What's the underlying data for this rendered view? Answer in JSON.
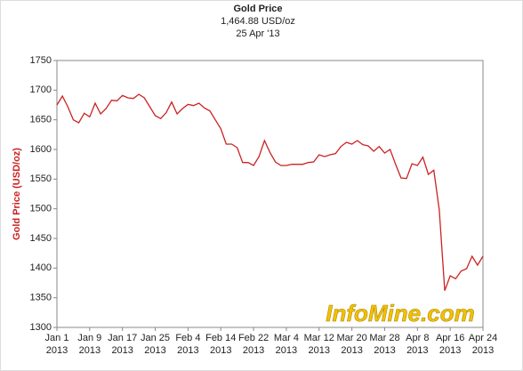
{
  "chart_data": {
    "type": "line",
    "title": "Gold Price",
    "subtitle": "1,464.88 USD/oz",
    "date": "25 Apr '13",
    "y_label": "Gold Price (USD/oz)",
    "watermark": "InfoMine.com",
    "x_year": "2013",
    "color": "#cc2222",
    "categories": [
      "Jan 1",
      null,
      null,
      null,
      null,
      null,
      "Jan 9",
      null,
      null,
      null,
      null,
      null,
      "Jan 17",
      null,
      null,
      null,
      null,
      null,
      "Jan 25",
      null,
      null,
      null,
      null,
      null,
      "Feb 4",
      null,
      null,
      null,
      null,
      null,
      "Feb 14",
      null,
      null,
      null,
      null,
      null,
      "Feb 22",
      null,
      null,
      null,
      null,
      null,
      "Mar 4",
      null,
      null,
      null,
      null,
      null,
      "Mar 12",
      null,
      null,
      null,
      null,
      null,
      "Mar 20",
      null,
      null,
      null,
      null,
      null,
      "Mar 28",
      null,
      null,
      null,
      null,
      null,
      "Apr 8",
      null,
      null,
      null,
      null,
      null,
      "Apr 16",
      null,
      null,
      null,
      null,
      null,
      "Apr 24"
    ],
    "values": [
      1675,
      1690,
      1672,
      1650,
      1645,
      1661,
      1655,
      1678,
      1660,
      1669,
      1683,
      1682,
      1691,
      1687,
      1686,
      1693,
      1687,
      1672,
      1657,
      1652,
      1662,
      1680,
      1660,
      1669,
      1676,
      1674,
      1678,
      1670,
      1665,
      1650,
      1635,
      1609,
      1609,
      1603,
      1578,
      1578,
      1573,
      1588,
      1615,
      1595,
      1579,
      1573,
      1573,
      1575,
      1575,
      1575,
      1578,
      1579,
      1591,
      1588,
      1591,
      1593,
      1605,
      1612,
      1609,
      1615,
      1608,
      1606,
      1597,
      1605,
      1594,
      1600,
      1575,
      1552,
      1551,
      1576,
      1573,
      1587,
      1558,
      1565,
      1498,
      1362,
      1387,
      1382,
      1395,
      1399,
      1420,
      1405,
      1420
    ],
    "ylim": [
      1300,
      1750
    ],
    "yticks": [
      1300,
      1350,
      1400,
      1450,
      1500,
      1550,
      1600,
      1650,
      1700,
      1750
    ]
  }
}
